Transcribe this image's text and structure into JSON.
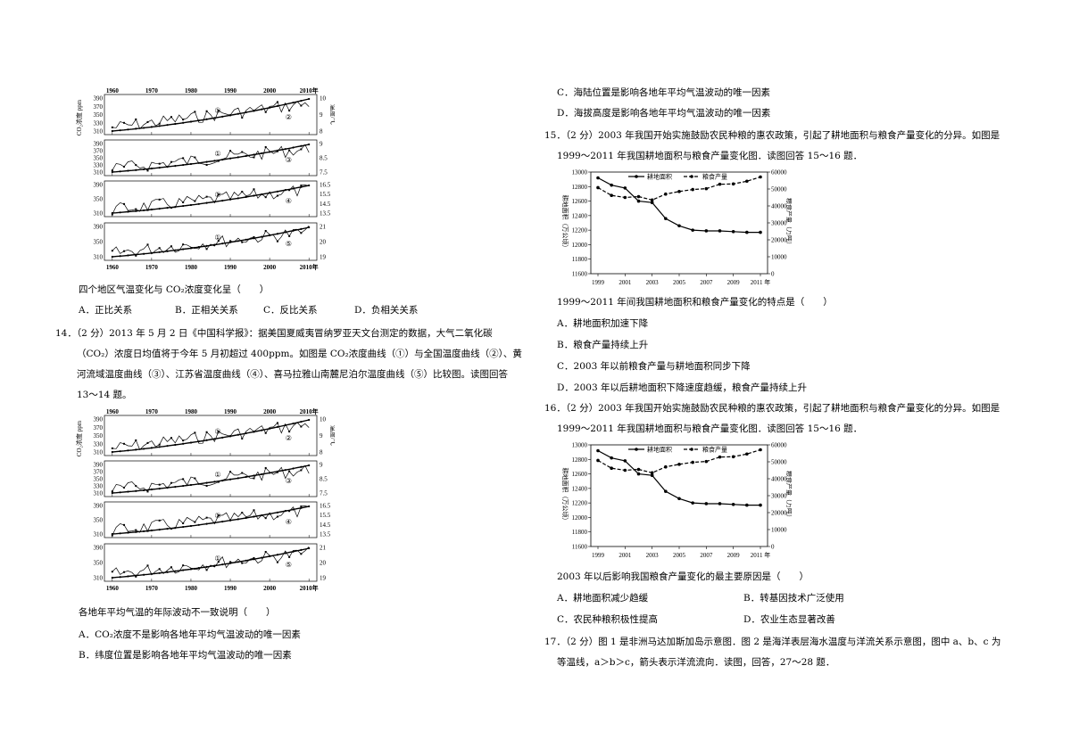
{
  "left": {
    "q12_stem": "四个地区气温变化与 CO₂浓度变化呈（　　）",
    "q12_options": [
      "A．正比关系",
      "B．正相关关系",
      "C．反比关系",
      "D．负相关关系"
    ],
    "q14_lines": [
      "14．（2 分）2013 年 5 月 2 日《中国科学报》：据美国夏威夷冒纳罗亚天文台测定的数据，大气二氧化碳",
      "（CO₂）浓度日均值将于今年 5 月初超过 400ppm。如图是 CO₂浓度曲线（①）与全国温度曲线（②）、黄",
      "河流域温度曲线（③）、江苏省温度曲线（④）、喜马拉雅山南麓尼泊尔温度曲线（⑤）比较图。读图回答",
      "13～14 题。"
    ],
    "q14_stem": "各地年平均气温的年际波动不一致说明（　　）",
    "q14_options": [
      "A．CO₂浓度不是影响各地年平均气温波动的唯一因素",
      "B．纬度位置是影响各地年平均气温波动的唯一因素"
    ]
  },
  "right": {
    "q14_options_cont": [
      "C．海陆位置是影响各地年平均气温波动的唯一因素",
      "D．海拔高度是影响各地年平均气温波动的唯一因素"
    ],
    "q15_lines": [
      "15．（2 分）2003 年我国开始实施鼓励农民种粮的惠农政策，引起了耕地面积与粮食产量变化的分异。如图是",
      "1999～2011 年我国耕地面积与粮食产量变化图．读图回答 15～16 题．"
    ],
    "q15_stem": "1999～2011 年间我国耕地面积和粮食产量变化的特点是（　　）",
    "q15_options": [
      "A．耕地面积加速下降",
      "B．粮食产量持续上升",
      "C．2003 年以前粮食产量与耕地面积同步下降",
      "D．2003 年以后耕地面积下降速度趋缓，粮食产量持续上升"
    ],
    "q16_lines": [
      "16．（2 分）2003 年我国开始实施鼓励农民种粮的惠农政策，引起了耕地面积与粮食产量变化的分异。如图是",
      "1999～2011 年我国耕地面积与粮食产量变化图．读图回答 15～16 题．"
    ],
    "q16_stem": "2003 年以后影响我国粮食产量变化的最主要原因是（　　）",
    "q16_options": [
      "A．耕地面积减少趋缓",
      "B．转基因技术广泛使用",
      "C．农民种粮积极性提高",
      "D．农业生态显著改善"
    ],
    "q17_lines": [
      "17．（2 分）图 1 是非洲马达加斯加岛示意图．图 2 是海洋表层海水温度与洋流关系示意图，图中 a、b、c 为",
      "等温线，a＞b＞c，箭头表示洋流流向．读图，回答，27～28 题．"
    ]
  },
  "climate_chart": {
    "top_ticks": [
      "1960",
      "1970",
      "1980",
      "1990",
      "2000",
      "2010年"
    ],
    "bottom_ticks": [
      "1960",
      "1970",
      "1980",
      "1990",
      "2000",
      "2010年"
    ],
    "left_axis_label": "CO₂浓度 ppm",
    "panels": [
      {
        "marker": "①",
        "marker2": "②",
        "left_ticks": [
          "390",
          "370",
          "350",
          "330",
          "310"
        ],
        "right_ticks": [
          "10",
          "9",
          "8"
        ],
        "right_label": "温度/℃"
      },
      {
        "marker": "①",
        "marker2": "③",
        "left_ticks": [
          "390",
          "370",
          "350",
          "330",
          "310"
        ],
        "right_ticks": [
          "9",
          "8.5",
          "7.5"
        ]
      },
      {
        "marker": "①",
        "marker2": "④",
        "left_ticks": [
          "390",
          "350",
          "310"
        ],
        "right_ticks": [
          "16.5",
          "15.5",
          "14.5",
          "13.5"
        ]
      },
      {
        "marker": "①",
        "marker2": "⑤",
        "left_ticks": [
          "390",
          "350",
          "310"
        ],
        "right_ticks": [
          "21",
          "20",
          "19"
        ]
      }
    ]
  },
  "chart_data": {
    "type": "line",
    "x": [
      1999,
      2000,
      2001,
      2002,
      2003,
      2004,
      2005,
      2006,
      2007,
      2008,
      2009,
      2010,
      2011
    ],
    "x_tick_labels": [
      "1999",
      "2001",
      "2003",
      "2005",
      "2007",
      "2009",
      "2011 年"
    ],
    "series": [
      {
        "name": "耕地面积",
        "axis": "left",
        "values": [
          12920,
          12820,
          12780,
          12600,
          12580,
          12360,
          12260,
          12200,
          12190,
          12190,
          12180,
          12170,
          12170
        ]
      },
      {
        "name": "粮食产量",
        "axis": "right",
        "values": [
          50800,
          46200,
          45000,
          45500,
          43500,
          47000,
          48500,
          49700,
          50200,
          52800,
          53000,
          54600,
          57100
        ]
      }
    ],
    "ylabel_left": "耕地面积（万公顷）",
    "ylabel_right": "粮食产量（万吨）",
    "ylim_left": [
      11600,
      13000
    ],
    "yticks_left": [
      "13000",
      "12800",
      "12600",
      "12400",
      "12200",
      "12000",
      "11800",
      "11600"
    ],
    "ylim_right": [
      0,
      60000
    ],
    "yticks_right": [
      "60000",
      "50000",
      "40000",
      "30000",
      "20000",
      "10000",
      "0"
    ],
    "legend_placement": "top",
    "grid": false
  }
}
